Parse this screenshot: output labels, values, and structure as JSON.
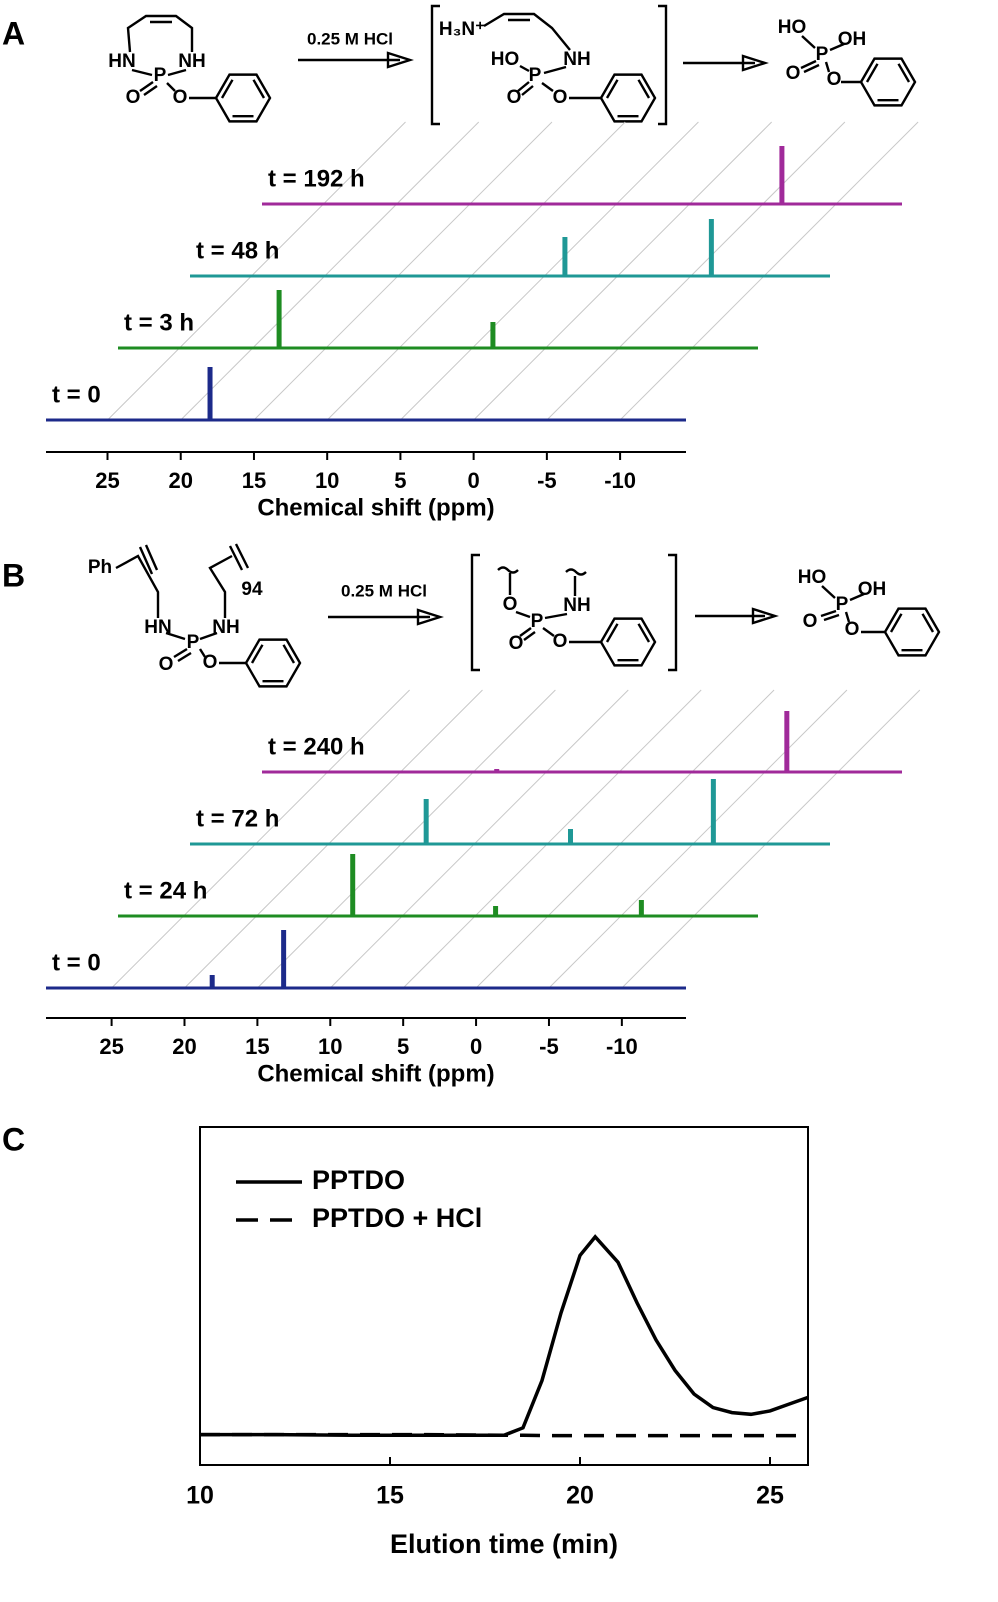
{
  "chart_data": [
    {
      "type": "spectra",
      "label": "A",
      "x_label": "Chemical shift (ppm)",
      "xlim": [
        29.2,
        -14.5
      ],
      "xticks": [
        25,
        20,
        15,
        10,
        5,
        0,
        -5,
        -10
      ],
      "series": [
        {
          "name": "t = 0",
          "color": "#1c2a8a",
          "x": [
            18.0
          ],
          "values": [
            53
          ]
        },
        {
          "name": "t = 3 h",
          "color": "#1e8c22",
          "x": [
            18.2,
            3.6
          ],
          "values": [
            58,
            26
          ]
        },
        {
          "name": "t = 48 h",
          "color": "#1f9896",
          "x": [
            3.6,
            -6.4
          ],
          "values": [
            39,
            57
          ]
        },
        {
          "name": "t = 192 h",
          "color": "#a02a9a",
          "x": [
            -6.3
          ],
          "values": [
            58
          ]
        }
      ]
    },
    {
      "type": "spectra",
      "label": "B",
      "x_label": "Chemical shift (ppm)",
      "xlim": [
        29.5,
        -14.4
      ],
      "xticks": [
        25,
        20,
        15,
        10,
        5,
        0,
        -5,
        -10
      ],
      "series": [
        {
          "name": "t = 0",
          "color": "#1c2a8a",
          "x": [
            18.1,
            13.2
          ],
          "values": [
            13,
            58
          ]
        },
        {
          "name": "t = 24 h",
          "color": "#1e8c22",
          "x": [
            13.4,
            3.6,
            -6.4
          ],
          "values": [
            62,
            10,
            16
          ]
        },
        {
          "name": "t = 72 h",
          "color": "#1f9896",
          "x": [
            13.3,
            3.4,
            -6.4
          ],
          "values": [
            45,
            15,
            65
          ]
        },
        {
          "name": "t = 240 h",
          "color": "#a02a9a",
          "x": [
            13.4,
            -6.5
          ],
          "values": [
            3,
            61
          ]
        }
      ]
    },
    {
      "type": "line",
      "label": "C",
      "x_label": "Elution time (min)",
      "xlim": [
        10,
        26
      ],
      "xticks": [
        10,
        15,
        20,
        25
      ],
      "ylim": [
        0,
        1
      ],
      "legend": "upper-left",
      "x": [
        10,
        12,
        14,
        16,
        18,
        18.5,
        19,
        19.5,
        20,
        20.4,
        21,
        21.5,
        22,
        22.5,
        23,
        23.5,
        24,
        24.5,
        25,
        25.5,
        26
      ],
      "series": [
        {
          "name": "PPTDO",
          "color": "#000000",
          "style": "solid",
          "values": [
            0.09,
            0.09,
            0.088,
            0.088,
            0.088,
            0.11,
            0.25,
            0.45,
            0.62,
            0.675,
            0.6,
            0.48,
            0.37,
            0.28,
            0.21,
            0.17,
            0.155,
            0.15,
            0.16,
            0.18,
            0.2
          ]
        },
        {
          "name": "PPTDO + HCl",
          "color": "#000000",
          "style": "dashed",
          "values": [
            0.09,
            0.09,
            0.09,
            0.09,
            0.088,
            0.088,
            0.087,
            0.087,
            0.087,
            0.087,
            0.087,
            0.087,
            0.087,
            0.087,
            0.087,
            0.087,
            0.087,
            0.087,
            0.087,
            0.087,
            0.087
          ]
        }
      ]
    }
  ],
  "schemes": [
    {
      "reagent": "0.25 M HCl",
      "atoms": [
        "HN",
        "NH",
        "P",
        "O",
        "O",
        "H₃N⁺",
        "HO",
        "P",
        "NH",
        "O",
        "O",
        "HO",
        "OH",
        "P",
        "O",
        "O"
      ]
    },
    {
      "reagent": "0.25 M HCl",
      "atoms": [
        "Ph",
        "94",
        "HN",
        "NH",
        "P",
        "O",
        "O",
        "O",
        "NH",
        "P",
        "O",
        "O",
        "HO",
        "OH",
        "P",
        "O",
        "O"
      ]
    }
  ]
}
